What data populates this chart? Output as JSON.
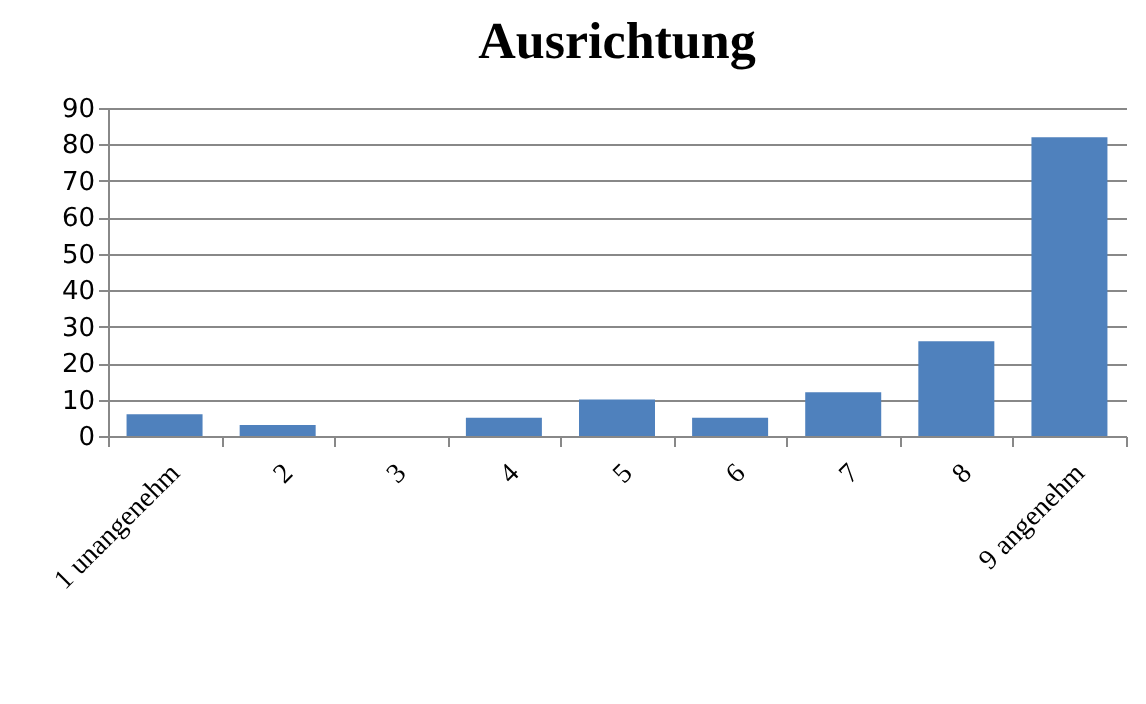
{
  "chart_data": {
    "type": "bar",
    "title": "Ausrichtung",
    "categories": [
      "1 unangenehm",
      "2",
      "3",
      "4",
      "5",
      "6",
      "7",
      "8",
      "9 angenehm"
    ],
    "values": [
      6,
      3,
      0,
      5,
      10,
      5,
      12,
      26,
      82
    ],
    "color": "#4f81bd",
    "ylim": [
      0,
      90
    ],
    "yticks": [
      0,
      10,
      20,
      30,
      40,
      50,
      60,
      70,
      80,
      90
    ],
    "grid": "y"
  }
}
